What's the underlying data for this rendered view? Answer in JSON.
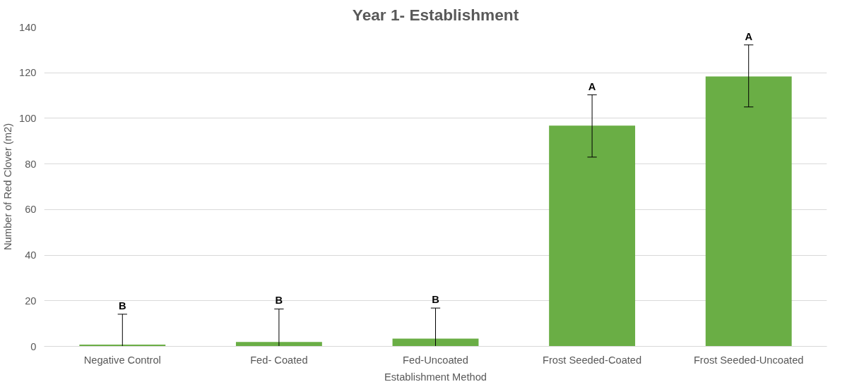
{
  "chart_data": {
    "type": "bar",
    "title": "Year 1- Establishment",
    "xlabel": "Establishment Method",
    "ylabel": "Number of Red Clover (m2)",
    "categories": [
      "Negative Control",
      "Fed- Coated",
      "Fed-Uncoated",
      "Frost Seeded-Coated",
      "Frost Seeded-Uncoated"
    ],
    "values": [
      0.8,
      1.9,
      3.4,
      96.8,
      118.4
    ],
    "color": "#6aae45",
    "errors": [
      [
        0,
        14.1
      ],
      [
        0,
        16.4
      ],
      [
        0,
        16.8
      ],
      [
        83,
        110.3
      ],
      [
        105,
        132.2
      ]
    ],
    "ylim": [
      0,
      140
    ],
    "yticks": [
      0,
      20,
      40,
      60,
      80,
      100,
      120,
      140
    ],
    "grid": "y",
    "annotations": [
      {
        "text": "B",
        "x": "Negative Control",
        "y": 14.1
      },
      {
        "text": "B",
        "x": "Fed- Coated",
        "y": 16.4
      },
      {
        "text": "B",
        "x": "Fed-Uncoated",
        "y": 16.8
      },
      {
        "text": "A",
        "x": "Frost Seeded-Coated",
        "y": 110.3
      },
      {
        "text": "A",
        "x": "Frost Seeded-Uncoated",
        "y": 132.2
      }
    ]
  }
}
